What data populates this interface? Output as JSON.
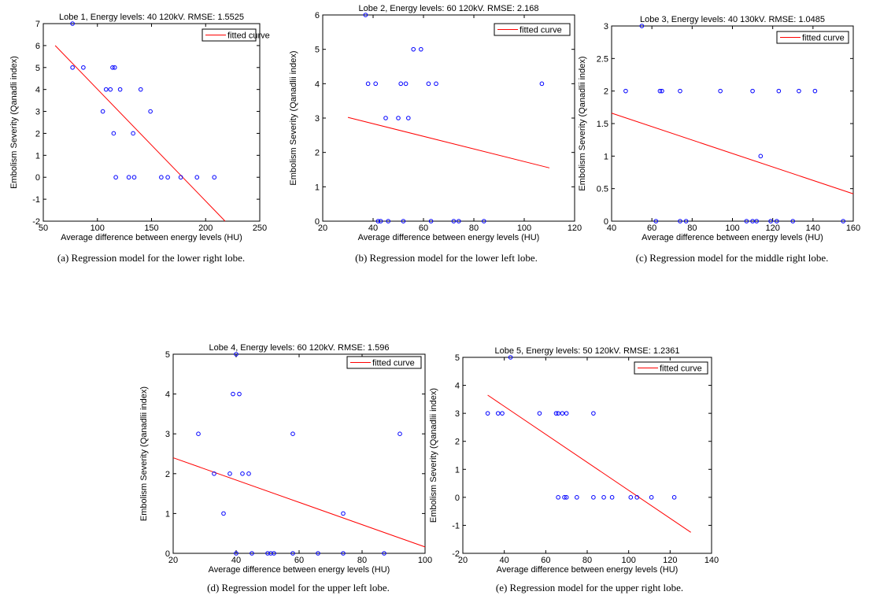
{
  "colors": {
    "points": "#0000ff",
    "fit": "#ff0000",
    "axes": "#000000"
  },
  "chart_data": [
    {
      "type": "scatter",
      "title": "Lobe 1, Energy levels: 40  120kV. RMSE: 1.5525",
      "xlabel": "Average difference between energy levels (HU)",
      "ylabel": "Embolism Severity (Qanadli index)",
      "xlim": [
        50,
        250
      ],
      "ylim": [
        -2,
        7
      ],
      "xticks": [
        "50",
        "100",
        "150",
        "200",
        "250"
      ],
      "yticks": [
        "-2",
        "-1",
        "0",
        "1",
        "2",
        "3",
        "4",
        "5",
        "6",
        "7"
      ],
      "legend": [
        "fitted curve"
      ],
      "legend_position": "top-right",
      "caption": "(a) Regression model for the lower right lobe.",
      "points": [
        [
          77,
          7
        ],
        [
          77,
          5
        ],
        [
          87,
          5
        ],
        [
          105,
          3
        ],
        [
          108,
          4
        ],
        [
          112,
          4
        ],
        [
          114,
          5
        ],
        [
          116,
          5
        ],
        [
          115,
          2
        ],
        [
          117,
          0
        ],
        [
          121,
          4
        ],
        [
          129,
          0
        ],
        [
          133,
          2
        ],
        [
          134,
          0
        ],
        [
          140,
          4
        ],
        [
          149,
          3
        ],
        [
          159,
          0
        ],
        [
          165,
          0
        ],
        [
          177,
          0
        ],
        [
          192,
          0
        ],
        [
          208,
          0
        ]
      ],
      "fit": [
        [
          61,
          6
        ],
        [
          218,
          -2
        ]
      ]
    },
    {
      "type": "scatter",
      "title": "Lobe 2, Energy levels: 60  120kV. RMSE: 2.168",
      "xlabel": "Average difference between energy levels (HU)",
      "ylabel": "Embolism Severity (Qanadlii index)",
      "xlim": [
        20,
        120
      ],
      "ylim": [
        0,
        6
      ],
      "xticks": [
        "20",
        "40",
        "60",
        "80",
        "100",
        "120"
      ],
      "yticks": [
        "0",
        "1",
        "2",
        "3",
        "4",
        "5",
        "6"
      ],
      "legend": [
        "fitted curve"
      ],
      "legend_position": "top-right",
      "caption": "(b) Regression model for the lower left lobe.",
      "points": [
        [
          37,
          6
        ],
        [
          38,
          4
        ],
        [
          41,
          4
        ],
        [
          42,
          0
        ],
        [
          43,
          0
        ],
        [
          45,
          3
        ],
        [
          46,
          0
        ],
        [
          50,
          3
        ],
        [
          51,
          4
        ],
        [
          52,
          0
        ],
        [
          53,
          4
        ],
        [
          54,
          3
        ],
        [
          56,
          5
        ],
        [
          59,
          5
        ],
        [
          62,
          4
        ],
        [
          63,
          0
        ],
        [
          65,
          4
        ],
        [
          72,
          0
        ],
        [
          74,
          0
        ],
        [
          84,
          0
        ],
        [
          107,
          4
        ]
      ],
      "fit": [
        [
          30,
          3.02
        ],
        [
          110,
          1.55
        ]
      ]
    },
    {
      "type": "scatter",
      "title": "Lobe 3, Energy levels: 40  130kV. RMSE: 1.0485",
      "xlabel": "Average difference between energy levels (HU)",
      "ylabel": "Embolism Severity (Qanadlii index)",
      "xlim": [
        40,
        160
      ],
      "ylim": [
        0,
        3
      ],
      "xticks": [
        "40",
        "60",
        "80",
        "100",
        "120",
        "140",
        "160"
      ],
      "yticks": [
        "0",
        "0.5",
        "1",
        "1.5",
        "2",
        "2.5",
        "3"
      ],
      "legend": [
        "fitted curve"
      ],
      "legend_position": "top-right",
      "caption": "(c) Regression model for the middle right lobe.",
      "points": [
        [
          47,
          2
        ],
        [
          55,
          3
        ],
        [
          62,
          0
        ],
        [
          64,
          2
        ],
        [
          65,
          2
        ],
        [
          74,
          2
        ],
        [
          74,
          0
        ],
        [
          77,
          0
        ],
        [
          94,
          2
        ],
        [
          107,
          0
        ],
        [
          110,
          2
        ],
        [
          110,
          0
        ],
        [
          112,
          0
        ],
        [
          114,
          1
        ],
        [
          119,
          0
        ],
        [
          122,
          0
        ],
        [
          123,
          2
        ],
        [
          130,
          0
        ],
        [
          133,
          2
        ],
        [
          141,
          2
        ],
        [
          155,
          0
        ]
      ],
      "fit": [
        [
          40,
          1.66
        ],
        [
          160,
          0.42
        ]
      ]
    },
    {
      "type": "scatter",
      "title": "Lobe 4, Energy levels: 60  120kV. RMSE: 1.596",
      "xlabel": "Average difference between energy levels (HU)",
      "ylabel": "Embolism Severity (Qanadlii index)",
      "xlim": [
        20,
        100
      ],
      "ylim": [
        0,
        5
      ],
      "xticks": [
        "20",
        "40",
        "60",
        "80",
        "100"
      ],
      "yticks": [
        "0",
        "1",
        "2",
        "3",
        "4",
        "5"
      ],
      "legend": [
        "fitted curve"
      ],
      "legend_position": "top-right",
      "caption": "(d) Regression model for the upper left lobe.",
      "points": [
        [
          28,
          3
        ],
        [
          33,
          2
        ],
        [
          36,
          1
        ],
        [
          38,
          2
        ],
        [
          39,
          4
        ],
        [
          40,
          5
        ],
        [
          40,
          0
        ],
        [
          41,
          4
        ],
        [
          42,
          2
        ],
        [
          44,
          2
        ],
        [
          45,
          0
        ],
        [
          50,
          0
        ],
        [
          51,
          0
        ],
        [
          52,
          0
        ],
        [
          58,
          3
        ],
        [
          58,
          0
        ],
        [
          66,
          0
        ],
        [
          74,
          1
        ],
        [
          74,
          0
        ],
        [
          87,
          0
        ],
        [
          92,
          3
        ]
      ],
      "fit": [
        [
          20,
          2.4
        ],
        [
          100,
          0.16
        ]
      ]
    },
    {
      "type": "scatter",
      "title": "Lobe 5, Energy levels: 50  120kV. RMSE: 1.2361",
      "xlabel": "Average difference between energy levels (HU)",
      "ylabel": "Embolism Severity (Qanadlii index)",
      "xlim": [
        20,
        140
      ],
      "ylim": [
        -2,
        5
      ],
      "xticks": [
        "20",
        "40",
        "60",
        "80",
        "100",
        "120",
        "140"
      ],
      "yticks": [
        "-2",
        "-1",
        "0",
        "1",
        "2",
        "3",
        "4",
        "5"
      ],
      "legend": [
        "fitted curve"
      ],
      "legend_position": "top-right",
      "caption": "(e) Regression model for the upper right lobe.",
      "points": [
        [
          32,
          3
        ],
        [
          37,
          3
        ],
        [
          39,
          3
        ],
        [
          43,
          5
        ],
        [
          57,
          3
        ],
        [
          65,
          3
        ],
        [
          66,
          3
        ],
        [
          66,
          0
        ],
        [
          68,
          3
        ],
        [
          69,
          0
        ],
        [
          70,
          3
        ],
        [
          70,
          0
        ],
        [
          75,
          0
        ],
        [
          83,
          3
        ],
        [
          83,
          0
        ],
        [
          88,
          0
        ],
        [
          92,
          0
        ],
        [
          101,
          0
        ],
        [
          104,
          0
        ],
        [
          111,
          0
        ],
        [
          122,
          0
        ]
      ],
      "fit": [
        [
          32,
          3.65
        ],
        [
          130,
          -1.25
        ]
      ]
    }
  ]
}
